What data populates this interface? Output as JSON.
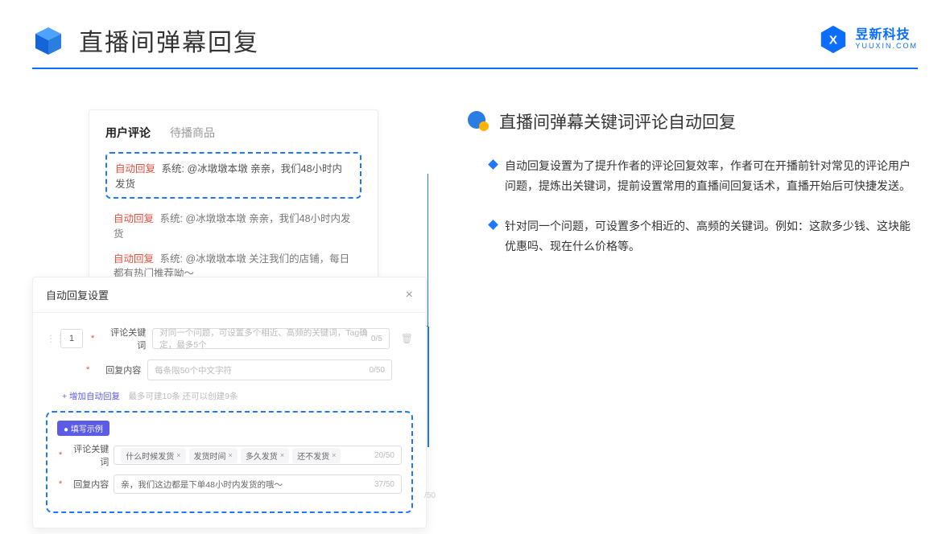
{
  "header": {
    "title": "直播间弹幕回复",
    "brand_name": "昱新科技",
    "brand_url": "YUUXIN.COM"
  },
  "comments": {
    "tab_active": "用户评论",
    "tab_inactive": "待播商品",
    "auto_tag": "自动回复",
    "sys_label": "系统:",
    "line1": "@冰墩墩本墩 亲亲，我们48小时内发货",
    "line2": "@冰墩墩本墩 亲亲，我们48小时内发货",
    "line3": "@冰墩墩本墩 关注我们的店铺，每日都有热门推荐呦～"
  },
  "settings": {
    "title": "自动回复设置",
    "num": "1",
    "kw_label": "评论关键词",
    "kw_placeholder": "对同一个问题，可设置多个相近、高频的关键词，Tag确定，最多5个",
    "kw_counter": "0/5",
    "content_label": "回复内容",
    "content_placeholder": "每条限50个中文字符",
    "content_counter": "0/50",
    "add_link": "+ 增加自动回复",
    "add_hint": "最多可建10条 还可以创建9条",
    "example_badge": "● 填写示例",
    "tags": [
      "什么时候发货",
      "发货时间",
      "多久发货",
      "还不发货"
    ],
    "ex_kw_counter": "20/50",
    "ex_content": "亲，我们这边都是下单48小时内发货的哦～",
    "ex_content_counter": "37/50",
    "outer_counter": "/50"
  },
  "right": {
    "section_title": "直播间弹幕关键词评论自动回复",
    "bullet1": "自动回复设置为了提升作者的评论回复效率，作者可在开播前针对常见的评论用户问题，提炼出关键词，提前设置常用的直播间回复话术，直播开始后可快捷发送。",
    "bullet2": "针对同一个问题，可设置多个相近的、高频的关键词。例如：这款多少钱、这块能优惠吗、现在什么价格等。"
  }
}
